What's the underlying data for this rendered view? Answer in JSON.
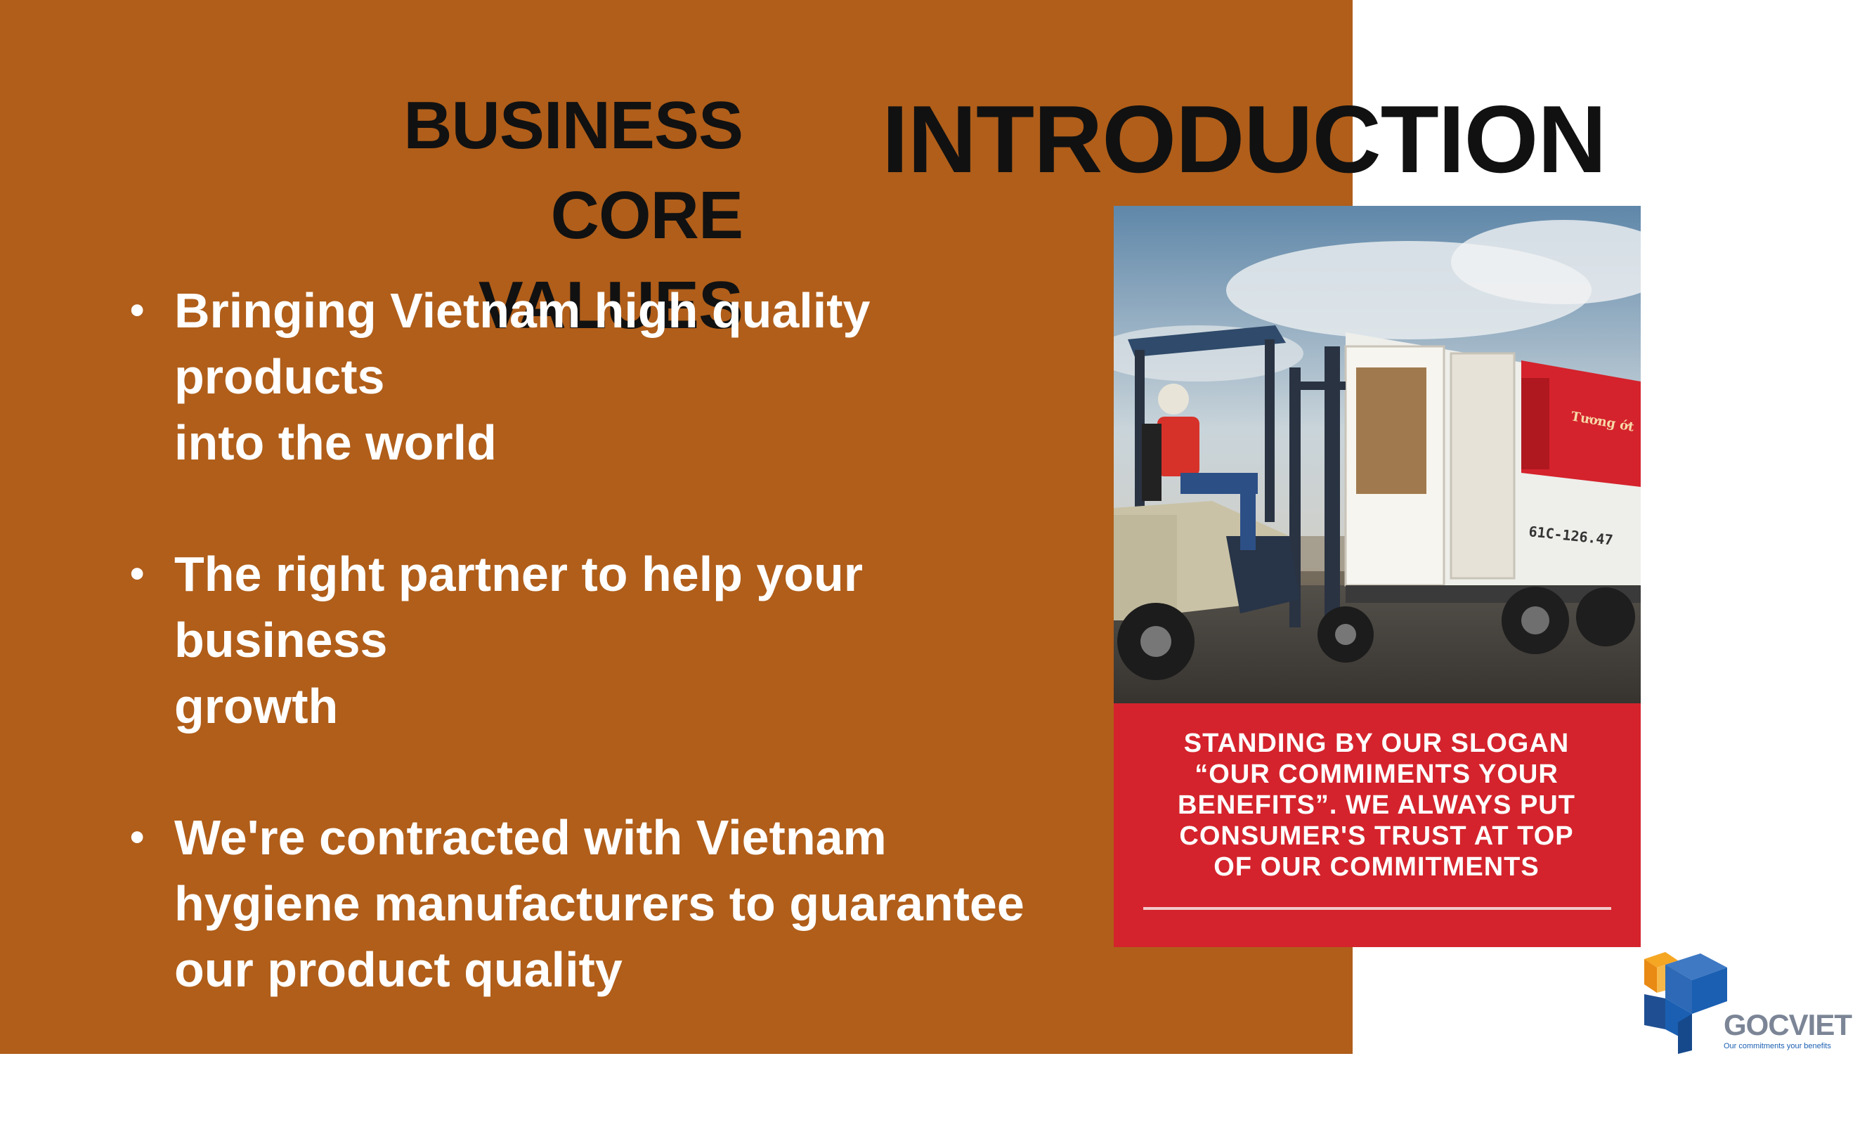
{
  "slide": {
    "core_title_line1": "BUSINESS CORE",
    "core_title_line2": "VALUES",
    "intro_title": "INTRODUCTION",
    "bullet_symbol": "•",
    "bullets": [
      {
        "line1": "Bringing Vietnam high quality products",
        "line2": "into the world",
        "line3": ""
      },
      {
        "line1": "The right partner to help your business",
        "line2": "growth",
        "line3": ""
      },
      {
        "line1": "We're  contracted with Vietnam",
        "line2": "hygiene  manufacturers to guarantee",
        "line3": "our product quality"
      },
      {
        "line1": "Our commitments your benefits",
        "line2": "",
        "line3": ""
      }
    ]
  },
  "photo_card": {
    "truck_plate": "61C-126.47",
    "slogan": "STANDING BY OUR SLOGAN “OUR COMMIMENTS YOUR BENEFITS”. WE ALWAYS PUT CONSUMER'S TRUST AT TOP OF OUR COMMITMENTS"
  },
  "logo": {
    "name": "GOCVIET",
    "tagline": "Our commitments your benefits"
  },
  "colors": {
    "panel": "#b05e1a",
    "slogan_red": "#d4232c",
    "text_dark": "#111111",
    "logo_blue": "#1a5fb2",
    "logo_orange": "#f5a623"
  }
}
